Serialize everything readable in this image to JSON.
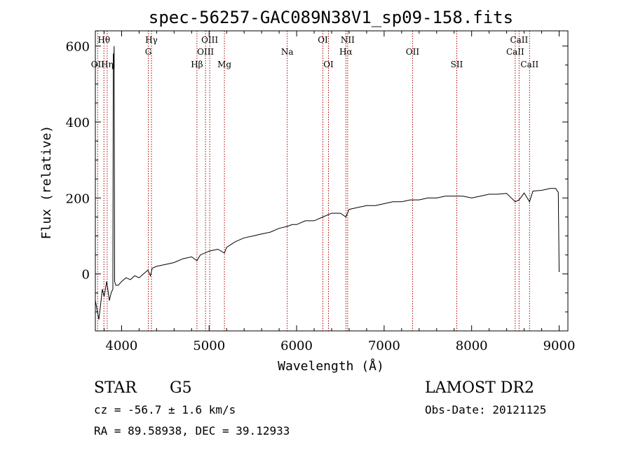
{
  "chart_data": {
    "type": "line",
    "title": "spec-56257-GAC089N38V1_sp09-158.fits",
    "xlabel": "Wavelength (Å)",
    "ylabel": "Flux (relative)",
    "xlim": [
      3700,
      9100
    ],
    "ylim": [
      -150,
      640
    ],
    "xticks": [
      4000,
      5000,
      6000,
      7000,
      8000,
      9000
    ],
    "yticks": [
      0,
      200,
      400,
      600
    ],
    "line_color": "#000000",
    "marker_color": "#aa0000",
    "series": [
      {
        "x": [
          3700,
          3740,
          3780,
          3800,
          3830,
          3860,
          3880,
          3900,
          3905,
          3910,
          3915,
          3920,
          3935,
          3960,
          4000,
          4050,
          4100,
          4150,
          4200,
          4250,
          4300,
          4330,
          4350,
          4400,
          4500,
          4600,
          4700,
          4800,
          4861,
          4900,
          5000,
          5100,
          5175,
          5200,
          5300,
          5400,
          5500,
          5600,
          5700,
          5800,
          5890,
          5950,
          6000,
          6100,
          6200,
          6300,
          6400,
          6500,
          6563,
          6600,
          6700,
          6800,
          6900,
          7000,
          7100,
          7200,
          7300,
          7400,
          7500,
          7600,
          7700,
          7800,
          7900,
          8000,
          8100,
          8200,
          8300,
          8400,
          8498,
          8542,
          8600,
          8662,
          8700,
          8800,
          8900,
          8960,
          8990,
          9000
        ],
        "y": [
          -70,
          -120,
          -40,
          -60,
          -20,
          -70,
          -50,
          -40,
          580,
          540,
          600,
          -20,
          -30,
          -30,
          -20,
          -10,
          -15,
          -5,
          -10,
          0,
          10,
          -5,
          15,
          20,
          25,
          30,
          40,
          45,
          35,
          50,
          60,
          65,
          55,
          70,
          85,
          95,
          100,
          105,
          110,
          120,
          125,
          130,
          130,
          140,
          140,
          150,
          160,
          160,
          150,
          170,
          175,
          180,
          180,
          185,
          190,
          190,
          195,
          195,
          200,
          200,
          205,
          205,
          205,
          200,
          205,
          210,
          210,
          212,
          190,
          195,
          213,
          190,
          218,
          220,
          225,
          225,
          215,
          5
        ]
      }
    ],
    "lines": [
      {
        "label": "Hθ",
        "x": 3798,
        "row": 1
      },
      {
        "label": "OII",
        "x": 3727,
        "row": 3
      },
      {
        "label": "Hη",
        "x": 3835,
        "row": 3
      },
      {
        "label": "Hγ",
        "x": 4341,
        "row": 1
      },
      {
        "label": "G",
        "x": 4305,
        "row": 2
      },
      {
        "label": "OIII",
        "x": 5007,
        "row": 1
      },
      {
        "label": "OIII",
        "x": 4959,
        "row": 2
      },
      {
        "label": "Hβ",
        "x": 4861,
        "row": 3
      },
      {
        "label": "Mg",
        "x": 5175,
        "row": 3
      },
      {
        "label": "Na",
        "x": 5893,
        "row": 2
      },
      {
        "label": "OI",
        "x": 6300,
        "row": 1
      },
      {
        "label": "OI",
        "x": 6364,
        "row": 3
      },
      {
        "label": "NII",
        "x": 6583,
        "row": 1
      },
      {
        "label": "Hα",
        "x": 6563,
        "row": 2
      },
      {
        "label": "OII",
        "x": 7325,
        "row": 2
      },
      {
        "label": "SII",
        "x": 7830,
        "row": 3
      },
      {
        "label": "CaII",
        "x": 8542,
        "row": 1
      },
      {
        "label": "CaII",
        "x": 8498,
        "row": 2
      },
      {
        "label": "CaII",
        "x": 8662,
        "row": 3
      }
    ]
  },
  "info": {
    "object_class": "STAR",
    "subclass": "G5",
    "survey": "LAMOST DR2",
    "redshift": "cz = -56.7 ± 1.6 km/s",
    "obs_date": "Obs-Date: 20121125",
    "coords": "RA =  89.58938, DEC =  39.12933"
  }
}
